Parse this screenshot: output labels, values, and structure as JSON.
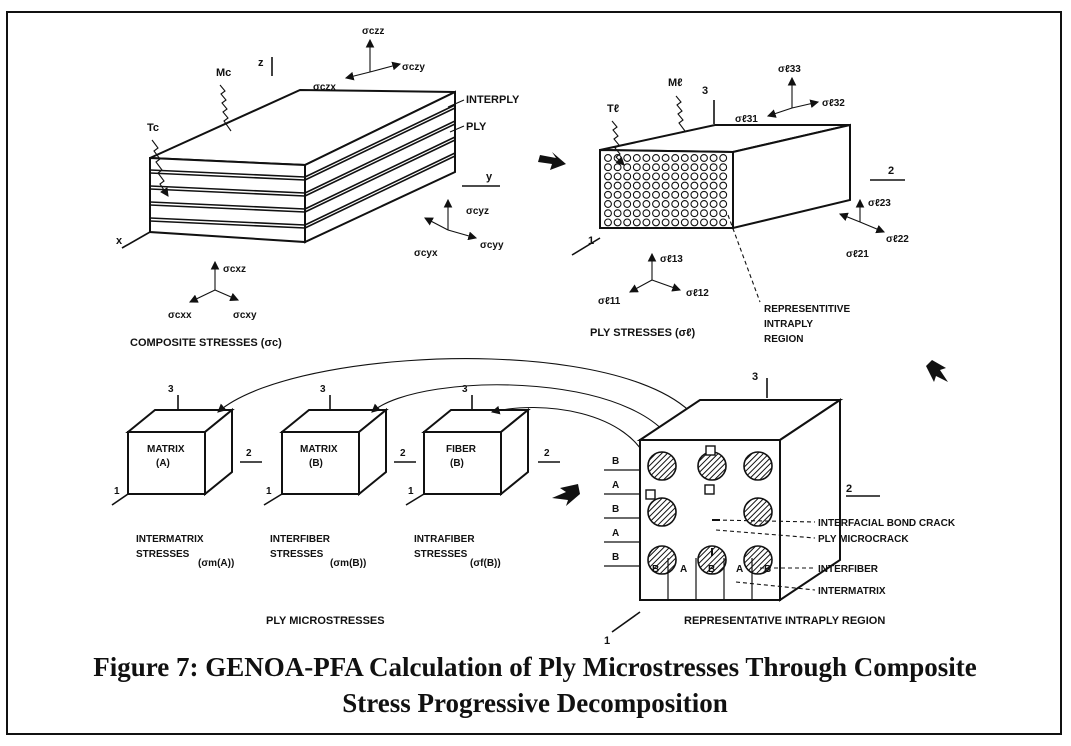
{
  "composite": {
    "label": "COMPOSITE STRESSES (σc)",
    "load_T": "Tc",
    "load_M": "Mc",
    "axis_x": "x",
    "axis_y": "y",
    "axis_z": "z",
    "interply": "INTERPLY",
    "ply": "PLY",
    "s_czz": "σczz",
    "s_czy": "σczy",
    "s_czx": "σczx",
    "s_cyz": "σcyz",
    "s_cyx": "σcyx",
    "s_cyy": "σcyy",
    "s_cxz": "σcxz",
    "s_cxx": "σcxx",
    "s_cxy": "σcxy"
  },
  "ply": {
    "label": "PLY STRESSES (σℓ)",
    "load_T": "Tℓ",
    "load_M": "Mℓ",
    "axis_1": "1",
    "axis_2": "2",
    "axis_3": "3",
    "s_33": "σℓ33",
    "s_31": "σℓ31",
    "s_32": "σℓ32",
    "s_23": "σℓ23",
    "s_22": "σℓ22",
    "s_21": "σℓ21",
    "s_13": "σℓ13",
    "s_11": "σℓ11",
    "s_12": "σℓ12",
    "region_note": [
      "REPRESENTITIVE",
      "INTRAPLY",
      "REGION"
    ]
  },
  "micro": {
    "boxes": [
      {
        "title": "MATRIX",
        "sub": "(A)",
        "caption": [
          "INTERMATRIX",
          "STRESSES"
        ],
        "symbol": "(σm(A))"
      },
      {
        "title": "MATRIX",
        "sub": "(B)",
        "caption": [
          "INTERFIBER",
          "STRESSES"
        ],
        "symbol": "(σm(B))"
      },
      {
        "title": "FIBER",
        "sub": "(B)",
        "caption": [
          "INTRAFIBER",
          "STRESSES"
        ],
        "symbol": "(σf(B))"
      }
    ],
    "axis_1": "1",
    "axis_2": "2",
    "axis_3": "3",
    "label": "PLY MICROSTRESSES"
  },
  "region": {
    "rows": [
      "B",
      "A",
      "B",
      "A",
      "B"
    ],
    "cols": [
      "B",
      "A",
      "B",
      "A",
      "B"
    ],
    "axis_1": "1",
    "axis_2": "2",
    "axis_3": "3",
    "callouts": [
      "INTERFACIAL BOND CRACK",
      "PLY MICROCRACK",
      "INTERFIBER",
      "INTERMATRIX"
    ],
    "label": "REPRESENTATIVE INTRAPLY REGION"
  },
  "caption": {
    "line1": "Figure 7: GENOA-PFA Calculation of Ply Microstresses Through Composite",
    "line2": "Stress Progressive Decomposition"
  }
}
